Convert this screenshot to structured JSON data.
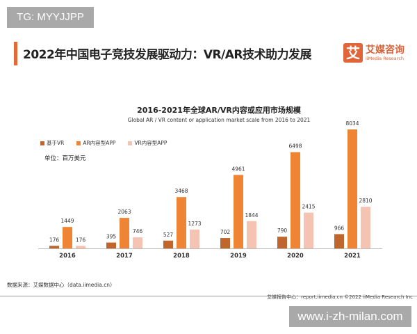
{
  "watermark_top": "TG: MYYJJPP",
  "watermark_bottom": "www.i-zh-milan.com",
  "page_title": "2022年中国电子竞技发展驱动力：VR/AR技术助力发展",
  "logo": {
    "mark": "艾",
    "cn": "艾媒咨询",
    "en": "iiMedia Research"
  },
  "colors": {
    "accent": "#e06a38",
    "vr_based": "#c0652c",
    "ar_app": "#ee8535",
    "vr_app": "#f5c3b2"
  },
  "chart_data": {
    "type": "bar",
    "title": "2016-2021年全球AR/VR内容或应用市场规模",
    "subtitle": "Global AR / VR content or application market scale from 2016 to 2021",
    "unit": "单位：百万美元",
    "categories": [
      "2016",
      "2017",
      "2018",
      "2019",
      "2020",
      "2021"
    ],
    "series": [
      {
        "name": "基于VR",
        "values": [
          176,
          395,
          527,
          702,
          790,
          966
        ]
      },
      {
        "name": "AR内容型APP",
        "values": [
          1449,
          2063,
          3468,
          4961,
          6498,
          8034
        ]
      },
      {
        "name": "VR内容型APP",
        "values": [
          176,
          746,
          1273,
          1844,
          2415,
          2810
        ]
      }
    ],
    "legend": "top-left",
    "grid": false
  },
  "source": "数据来源：艾媒数据中心（data.iimedia.cn）",
  "footer": "艾媒报告中心：report.iimedia.cn   ©2022  iiMedia Research  Inc"
}
